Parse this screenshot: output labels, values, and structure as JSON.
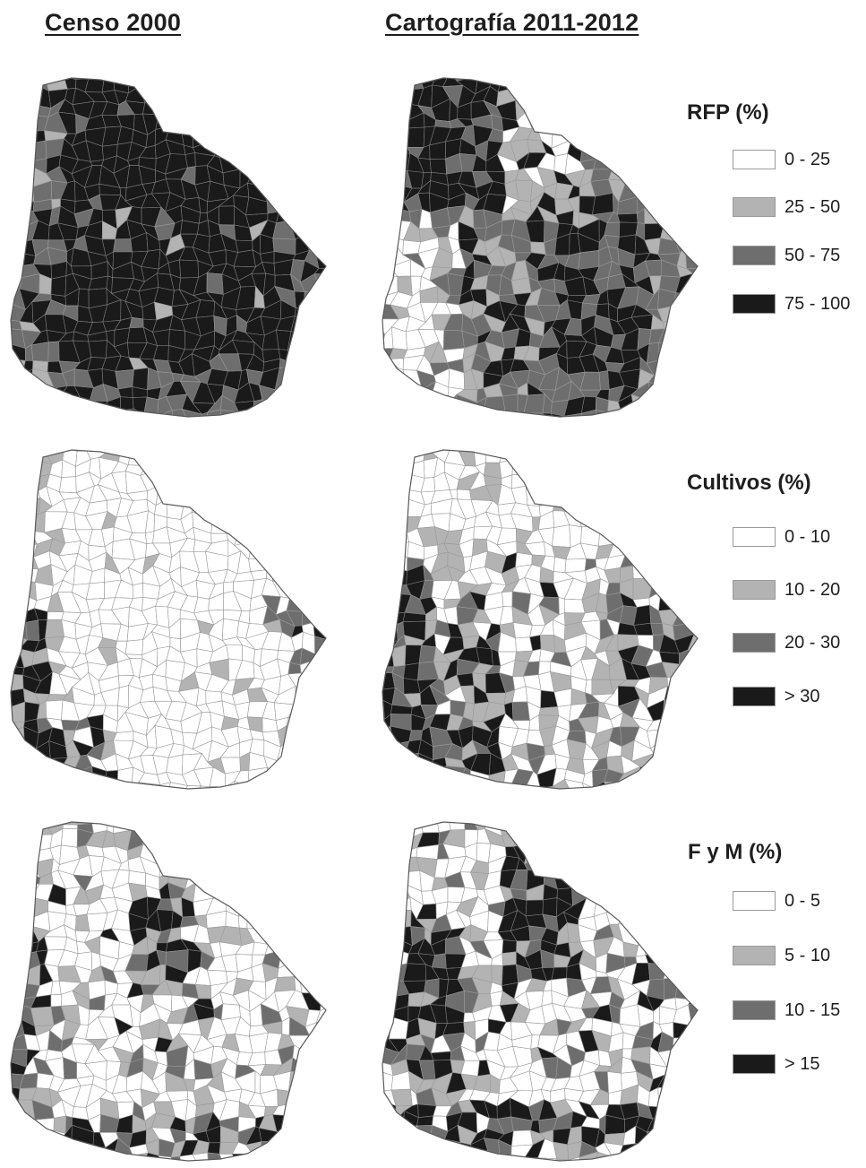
{
  "headers": {
    "left": "Censo 2000",
    "right": "Cartografía 2011-2012"
  },
  "palette": {
    "class1": "#ffffff",
    "class2": "#b3b3b3",
    "class3": "#6e6e6e",
    "class4": "#1a1a1a",
    "boundary": "#9a9a9a",
    "outline": "#5a5a5a"
  },
  "legends": [
    {
      "title": "RFP (%)",
      "classes": [
        "0 - 25",
        "25 - 50",
        "50 - 75",
        "75 - 100"
      ]
    },
    {
      "title": "Cultivos (%)",
      "classes": [
        "0 - 10",
        "10 - 20",
        "20 - 30",
        "> 30"
      ]
    },
    {
      "title": "F y M (%)",
      "classes": [
        "0 - 5",
        "5 - 10",
        "10 - 15",
        "> 15"
      ]
    }
  ]
}
